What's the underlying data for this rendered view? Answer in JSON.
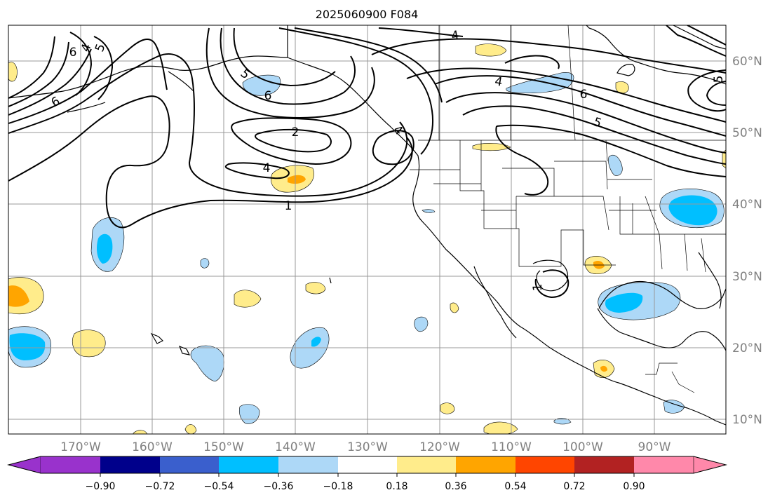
{
  "map": {
    "title": "2025060900 F084",
    "lon_labels": [
      "170°W",
      "160°W",
      "150°W",
      "140°W",
      "130°W",
      "120°W",
      "110°W",
      "100°W",
      "90°W"
    ],
    "lat_labels": [
      "60°N",
      "50°N",
      "40°N",
      "30°N",
      "20°N",
      "10°N"
    ],
    "contour_labels": [
      "4",
      "6",
      "4",
      "5",
      "6",
      "4",
      "6",
      "4",
      "2",
      "4",
      "1",
      "1",
      "6",
      "5",
      "5",
      "5"
    ],
    "gridline_color": "#999999",
    "label_color": "#808080"
  },
  "colorbar": {
    "ticks": [
      "−0.90",
      "−0.72",
      "−0.54",
      "−0.36",
      "−0.18",
      "0.18",
      "0.36",
      "0.54",
      "0.72",
      "0.90"
    ],
    "colors": [
      "#9932cc",
      "#00008b",
      "#3a5fcd",
      "#00bfff",
      "#add8f7",
      "#ffffff",
      "#ffec8b",
      "#ffa500",
      "#ff4500",
      "#b22222",
      "#ff88aa"
    ]
  }
}
